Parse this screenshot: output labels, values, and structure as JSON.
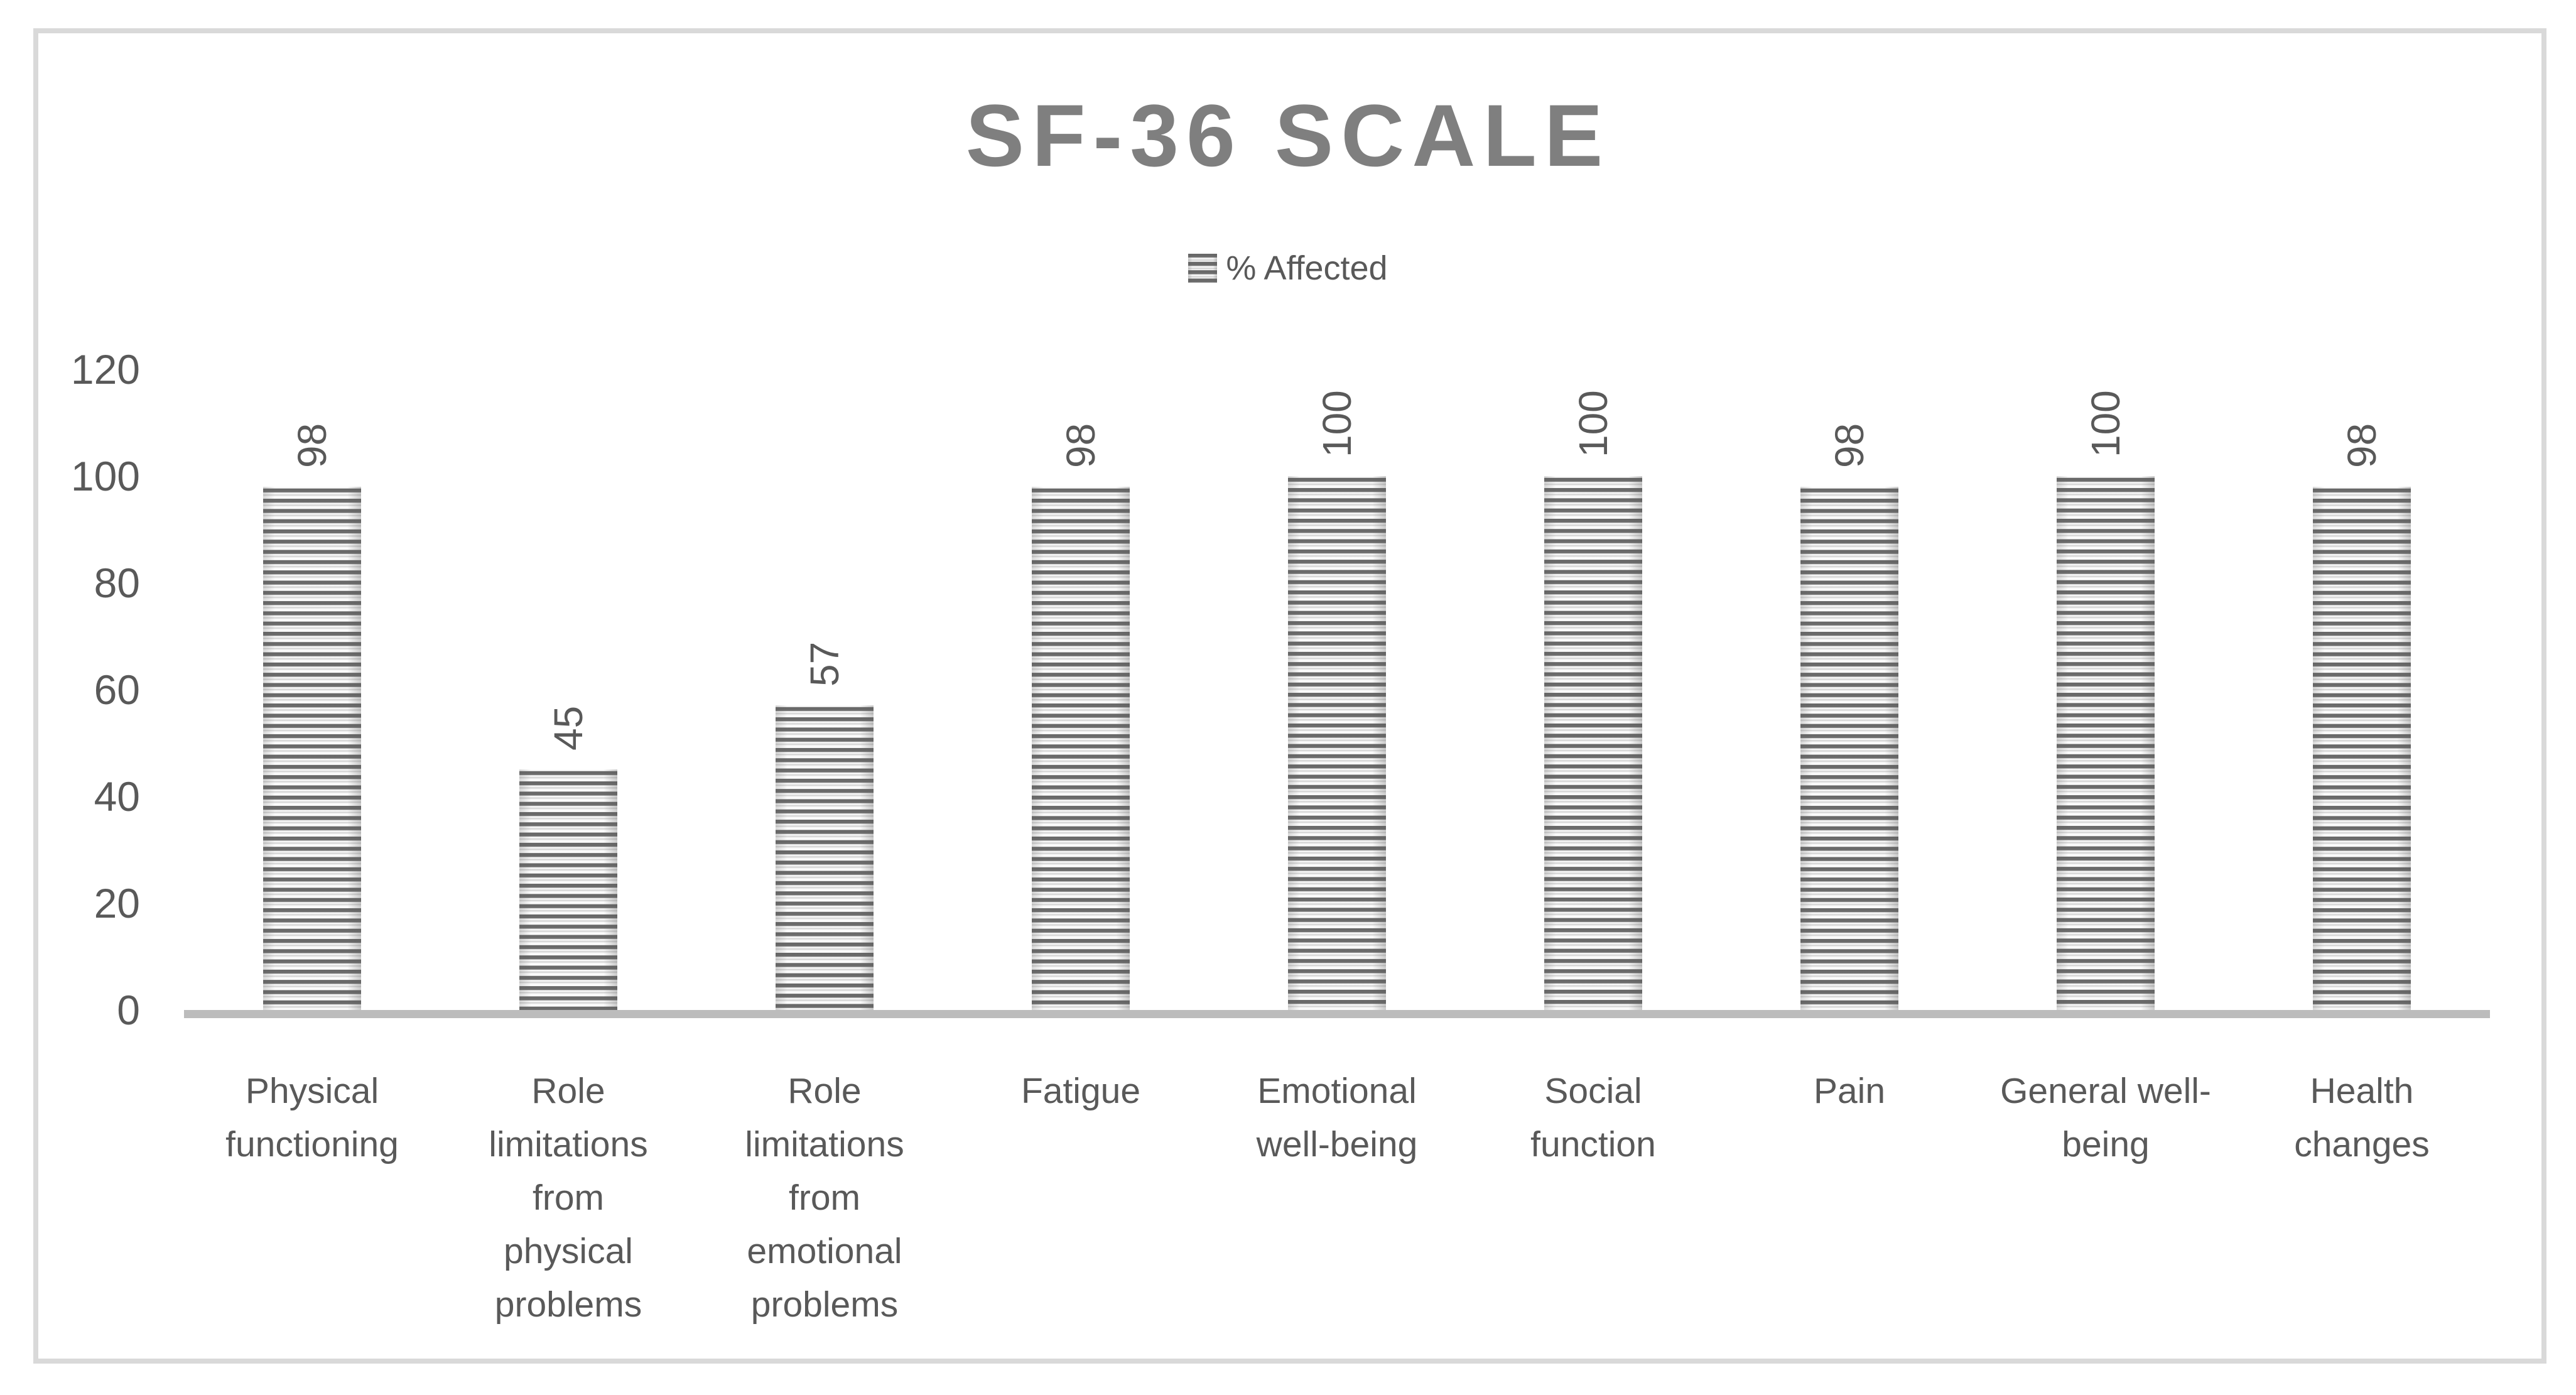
{
  "chart_data": {
    "type": "bar",
    "title": "SF-36 SCALE",
    "legend": [
      "% Affected"
    ],
    "legend_position": "top",
    "categories": [
      "Physical functioning",
      "Role limitations from physical problems",
      "Role limitations from emotional problems",
      "Fatigue",
      "Emotional well-being",
      "Social function",
      "Pain",
      "General well-being",
      "Health changes"
    ],
    "categories_wrapped": [
      "Physical\nfunctioning",
      "Role\nlimitations\nfrom\nphysical\nproblems",
      "Role\nlimitations\nfrom\nemotional\nproblems",
      "Fatigue",
      "Emotional\nwell-being",
      "Social\nfunction",
      "Pain",
      "General well-\nbeing",
      "Health\nchanges"
    ],
    "series": [
      {
        "name": "% Affected",
        "values": [
          98,
          45,
          57,
          98,
          100,
          100,
          98,
          100,
          98
        ]
      }
    ],
    "data_labels": [
      "98",
      "45",
      "57",
      "98",
      "100",
      "100",
      "98",
      "100",
      "98"
    ],
    "yticks": [
      0,
      20,
      40,
      60,
      80,
      100,
      120
    ],
    "ylim": [
      0,
      120
    ],
    "xlabel": "",
    "ylabel": "",
    "grid": false,
    "bar_fill": "horizontal-stripe-pattern",
    "colors": {
      "title_text": "#7f7f7f",
      "axis_text": "#595959",
      "axis_line": "#bcbcbc",
      "stripe_dark": "#666666",
      "stripe_light": "#f5f5f5",
      "chart_border": "#d9d9d9"
    }
  }
}
